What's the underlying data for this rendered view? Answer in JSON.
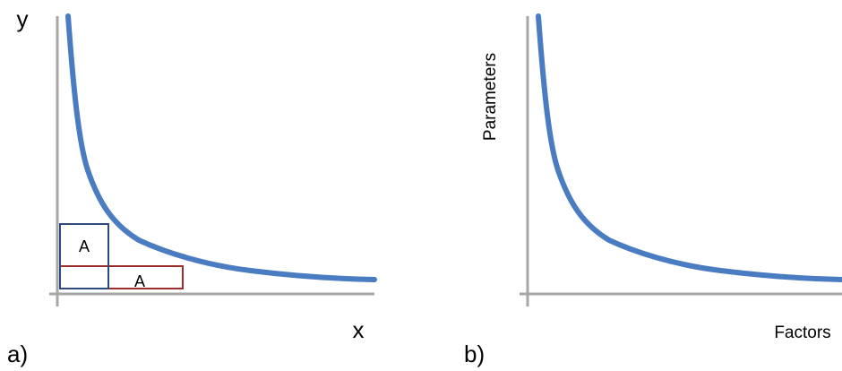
{
  "panel_a": {
    "panel_label": "a)",
    "x_label": "x",
    "y_label": "y",
    "boxes": [
      {
        "label": "A",
        "color": "#2e4a7d"
      },
      {
        "label": "A",
        "color": "#9b2d2d"
      }
    ]
  },
  "panel_b": {
    "panel_label": "b)",
    "x_label": "Factors",
    "y_label": "Parameters"
  },
  "colors": {
    "curve": "#4a7cc2",
    "axis": "#a6a6a6"
  }
}
